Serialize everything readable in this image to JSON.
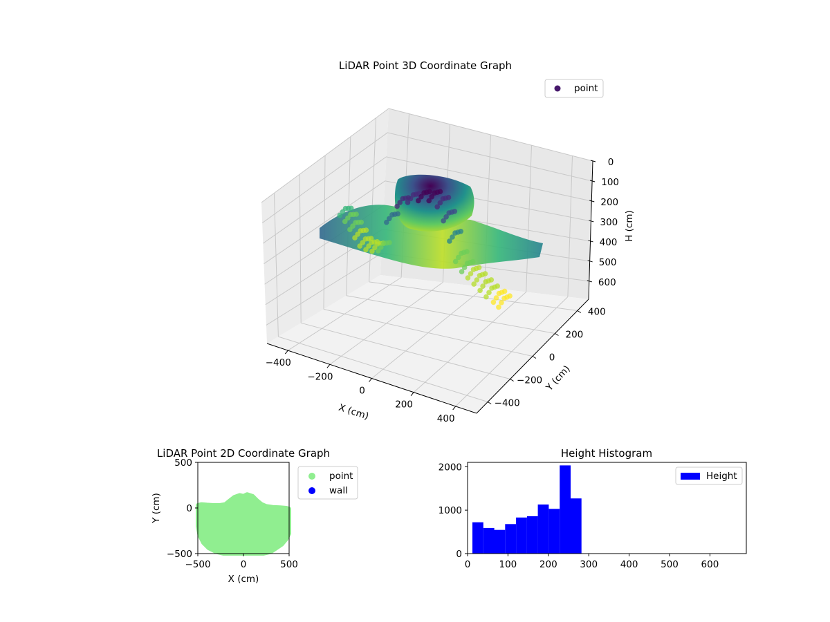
{
  "chart_data": [
    {
      "type": "scatter",
      "projection": "3d",
      "title": "LiDAR Point 3D Coordinate Graph",
      "xlabel": "X (cm)",
      "ylabel": "Y (cm)",
      "zlabel": "H (cm)",
      "xticks": [
        "−400",
        "−200",
        "0",
        "200",
        "400"
      ],
      "yticks": [
        "−400",
        "−200",
        "0",
        "200",
        "400"
      ],
      "zticks": [
        "0",
        "100",
        "200",
        "300",
        "400",
        "500",
        "600"
      ],
      "xlim": [
        -500,
        500
      ],
      "ylim": [
        -500,
        500
      ],
      "zlim": [
        0,
        690
      ],
      "z_axis_inverted": true,
      "colormap": "viridis",
      "legend": {
        "position": "upper right",
        "entries": [
          {
            "name": "point",
            "color": "#46186b"
          }
        ]
      },
      "grid": true,
      "series": [
        {
          "name": "point",
          "description_shape": "dense dome centred near origin reaching about H=0 at top (inverted axis), with sparser arcs of points extending toward X=-450 and X=+450",
          "x": [
            -450,
            -420,
            -380,
            -340,
            -300,
            -260,
            -220,
            -180,
            -140,
            -100,
            -60,
            -20,
            20,
            60,
            100,
            140,
            180,
            220,
            260,
            300,
            340,
            380,
            420,
            450
          ],
          "y": [
            100,
            90,
            60,
            30,
            0,
            -20,
            -40,
            -60,
            -60,
            -40,
            -20,
            0,
            20,
            20,
            0,
            -20,
            -40,
            -60,
            -80,
            -100,
            -120,
            -140,
            -150,
            -160
          ],
          "h": [
            220,
            240,
            260,
            280,
            300,
            300,
            290,
            270,
            120,
            40,
            20,
            10,
            10,
            30,
            80,
            160,
            240,
            270,
            280,
            290,
            300,
            310,
            320,
            330
          ]
        }
      ]
    },
    {
      "type": "scatter",
      "title": "LiDAR Point 2D Coordinate Graph",
      "xlabel": "X (cm)",
      "ylabel": "Y (cm)",
      "xlim": [
        -500,
        500
      ],
      "ylim": [
        -500,
        500
      ],
      "xticks": [
        "−500",
        "0",
        "500"
      ],
      "yticks": [
        "500",
        "0",
        "−500"
      ],
      "legend": {
        "position": "outside right",
        "entries": [
          {
            "name": "point",
            "color": "#90ee90"
          },
          {
            "name": "wall",
            "color": "#0000ff"
          }
        ]
      },
      "series": [
        {
          "name": "point",
          "color": "#90ee90",
          "outline_points": [
            [
              -500,
              30
            ],
            [
              -460,
              40
            ],
            [
              -400,
              35
            ],
            [
              -330,
              30
            ],
            [
              -260,
              30
            ],
            [
              -200,
              40
            ],
            [
              -150,
              80
            ],
            [
              -100,
              120
            ],
            [
              -40,
              140
            ],
            [
              0,
              130
            ],
            [
              40,
              150
            ],
            [
              100,
              130
            ],
            [
              150,
              80
            ],
            [
              200,
              40
            ],
            [
              250,
              20
            ],
            [
              320,
              10
            ],
            [
              400,
              5
            ],
            [
              470,
              0
            ],
            [
              500,
              -10
            ],
            [
              500,
              -280
            ],
            [
              470,
              -340
            ],
            [
              420,
              -400
            ],
            [
              360,
              -440
            ],
            [
              300,
              -480
            ],
            [
              220,
              -500
            ],
            [
              120,
              -500
            ],
            [
              40,
              -500
            ],
            [
              -40,
              -500
            ],
            [
              -120,
              -500
            ],
            [
              -220,
              -500
            ],
            [
              -300,
              -480
            ],
            [
              -380,
              -440
            ],
            [
              -440,
              -380
            ],
            [
              -480,
              -300
            ],
            [
              -500,
              -200
            ]
          ]
        },
        {
          "name": "wall",
          "color": "#0000ff",
          "points": []
        }
      ]
    },
    {
      "type": "bar",
      "title": "Height Histogram",
      "xlim": [
        0,
        690
      ],
      "ylim": [
        0,
        2100
      ],
      "xticks": [
        "0",
        "100",
        "200",
        "300",
        "400",
        "500",
        "600"
      ],
      "yticks": [
        "0",
        "1000",
        "2000"
      ],
      "legend": {
        "position": "upper right",
        "entries": [
          {
            "name": "Height",
            "color": "#0000ff"
          }
        ]
      },
      "series": [
        {
          "name": "Height",
          "color": "#0000ff",
          "bins": [
            [
              12,
              39,
              720
            ],
            [
              39,
              66,
              590
            ],
            [
              66,
              93,
              545
            ],
            [
              93,
              120,
              680
            ],
            [
              120,
              147,
              830
            ],
            [
              147,
              174,
              860
            ],
            [
              174,
              201,
              1130
            ],
            [
              201,
              228,
              1030
            ],
            [
              228,
              255,
              2030
            ],
            [
              255,
              282,
              1270
            ]
          ]
        }
      ]
    }
  ]
}
